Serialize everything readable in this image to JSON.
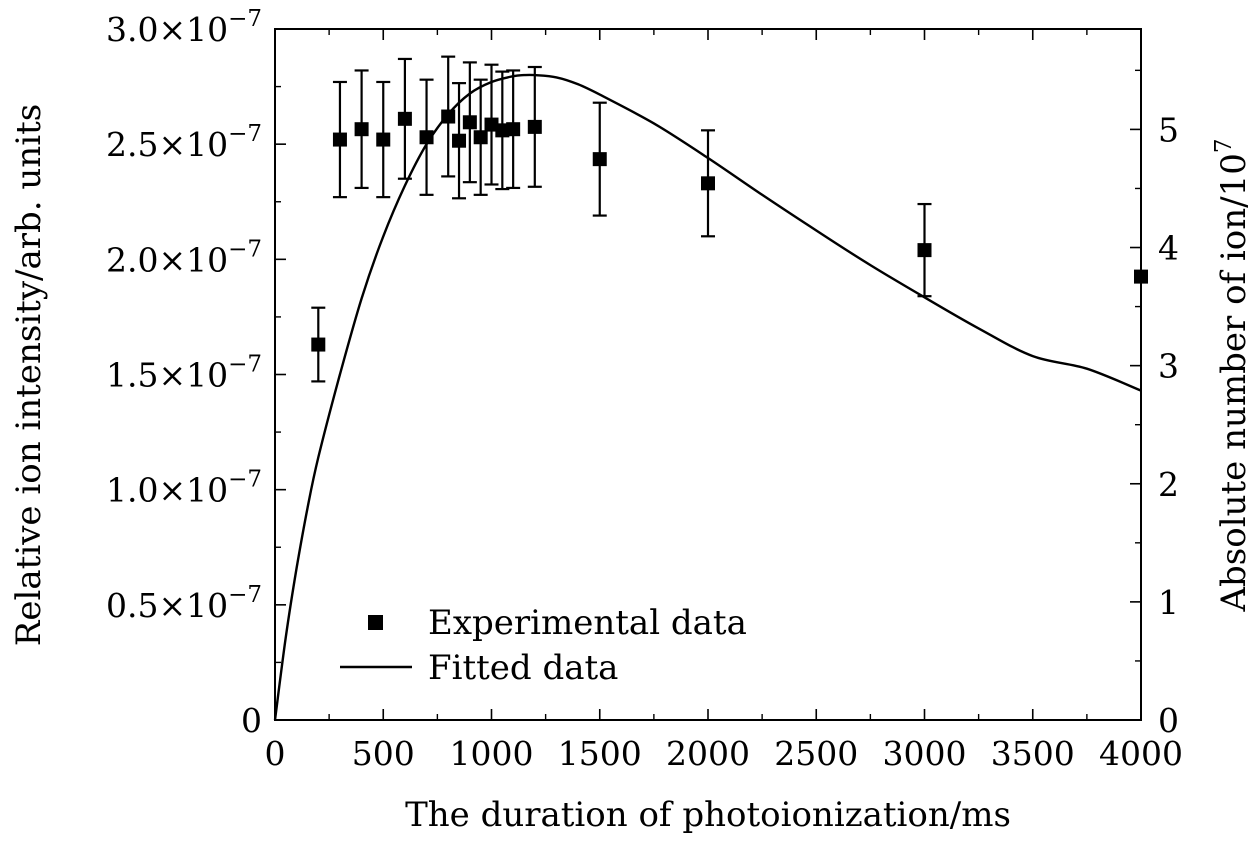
{
  "chart_data": {
    "type": "scatter",
    "title": "",
    "xlabel": "The duration of photoionization/ms",
    "ylabel_left": "Relative ion intensity/arb. units",
    "ylabel_right": "Absolute number of ion/10",
    "ylabel_right_exp": "7",
    "xlim": [
      0,
      4000
    ],
    "ylim_left": [
      0,
      3e-07
    ],
    "ylim_right": [
      0,
      5.85
    ],
    "x_ticks": [
      0,
      500,
      1000,
      1500,
      2000,
      2500,
      3000,
      3500,
      4000
    ],
    "x_tick_labels": [
      "0",
      "500",
      "1000",
      "1500",
      "2000",
      "2500",
      "3000",
      "3500",
      "4000"
    ],
    "y_left_ticks": [
      0,
      5e-08,
      1e-07,
      1.5e-07,
      2e-07,
      2.5e-07,
      3e-07
    ],
    "y_left_tick_labels": [
      {
        "mant": "0",
        "exp": ""
      },
      {
        "mant": "0.5×10",
        "exp": "−7"
      },
      {
        "mant": "1.0×10",
        "exp": "−7"
      },
      {
        "mant": "1.5×10",
        "exp": "−7"
      },
      {
        "mant": "2.0×10",
        "exp": "−7"
      },
      {
        "mant": "2.5×10",
        "exp": "−7"
      },
      {
        "mant": "3.0×10",
        "exp": "−7"
      }
    ],
    "y_right_ticks": [
      0,
      1,
      2,
      3,
      4,
      5
    ],
    "y_right_tick_labels": [
      "0",
      "1",
      "2",
      "3",
      "4",
      "5"
    ],
    "series": [
      {
        "name": "Experimental data",
        "kind": "scatter_errorbar",
        "points": [
          {
            "x": 200,
            "y": 1.63e-07,
            "err": 1.6e-08
          },
          {
            "x": 300,
            "y": 2.52e-07,
            "err": 2.5e-08
          },
          {
            "x": 400,
            "y": 2.565e-07,
            "err": 2.55e-08
          },
          {
            "x": 500,
            "y": 2.52e-07,
            "err": 2.5e-08
          },
          {
            "x": 600,
            "y": 2.61e-07,
            "err": 2.6e-08
          },
          {
            "x": 700,
            "y": 2.53e-07,
            "err": 2.5e-08
          },
          {
            "x": 800,
            "y": 2.62e-07,
            "err": 2.6e-08
          },
          {
            "x": 850,
            "y": 2.515e-07,
            "err": 2.5e-08
          },
          {
            "x": 900,
            "y": 2.595e-07,
            "err": 2.6e-08
          },
          {
            "x": 950,
            "y": 2.53e-07,
            "err": 2.5e-08
          },
          {
            "x": 1000,
            "y": 2.585e-07,
            "err": 2.6e-08
          },
          {
            "x": 1050,
            "y": 2.56e-07,
            "err": 2.55e-08
          },
          {
            "x": 1100,
            "y": 2.565e-07,
            "err": 2.55e-08
          },
          {
            "x": 1200,
            "y": 2.575e-07,
            "err": 2.6e-08
          },
          {
            "x": 1500,
            "y": 2.435e-07,
            "err": 2.45e-08
          },
          {
            "x": 2000,
            "y": 2.33e-07,
            "err": 2.3e-08
          },
          {
            "x": 3000,
            "y": 2.04e-07,
            "err": 2e-08
          },
          {
            "x": 4000,
            "y": 1.925e-07,
            "err": 0
          }
        ]
      },
      {
        "name": "Fitted data",
        "kind": "line",
        "x": [
          0,
          50,
          100,
          150,
          200,
          300,
          400,
          500,
          600,
          700,
          800,
          900,
          1000,
          1100,
          1150,
          1200,
          1300,
          1400,
          1500,
          1750,
          2000,
          2250,
          2500,
          2750,
          3000,
          3250,
          3500,
          3750,
          4000
        ],
        "y": [
          0,
          3.6e-08,
          6.6e-08,
          9.2e-08,
          1.14e-07,
          1.5e-07,
          1.83e-07,
          2.1e-07,
          2.32e-07,
          2.5e-07,
          2.63e-07,
          2.72e-07,
          2.77e-07,
          2.795e-07,
          2.8e-07,
          2.8e-07,
          2.79e-07,
          2.76e-07,
          2.715e-07,
          2.59e-07,
          2.44e-07,
          2.28e-07,
          2.125e-07,
          1.975e-07,
          1.835e-07,
          1.7e-07,
          1.58e-07,
          1.525e-07,
          1.43e-07
        ]
      }
    ],
    "legend_position": "bottom-left"
  }
}
